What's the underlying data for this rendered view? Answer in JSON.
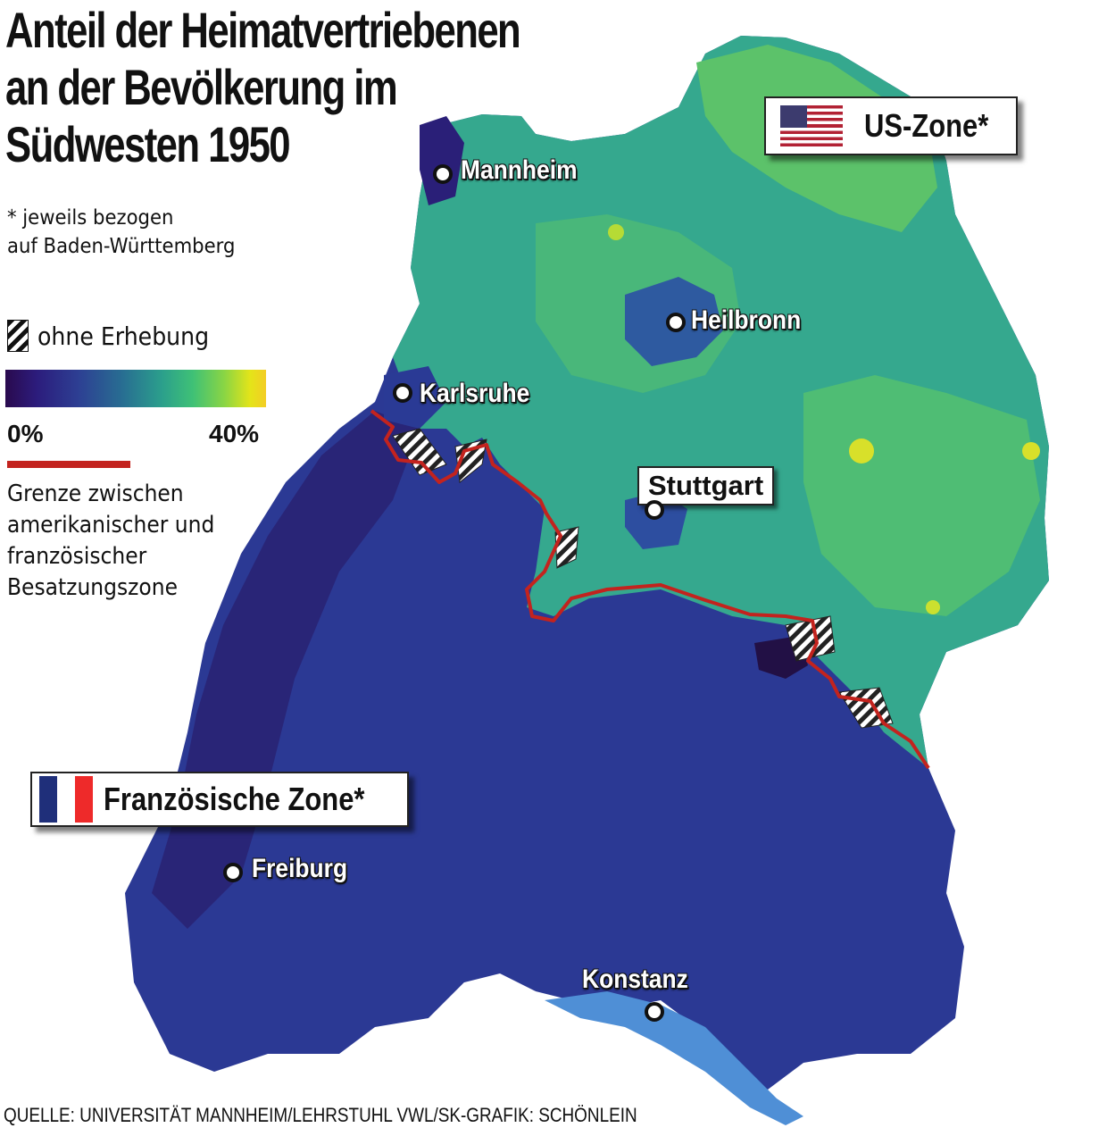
{
  "title": {
    "line1": "Anteil der Heimatvertriebenen",
    "line2": "an der Bevölkerung im",
    "line3": "Südwesten 1950"
  },
  "footnote": {
    "line1": "* jeweils bezogen",
    "line2": "auf Baden-Württemberg"
  },
  "legend": {
    "hatch_label": "ohne Erhebung",
    "scale_min": "0%",
    "scale_max": "40%",
    "border_line1": "Grenze zwischen",
    "border_line2": "amerikanischer und",
    "border_line3": "französischer",
    "border_line4": "Besatzungszone"
  },
  "zones": {
    "us": "US-Zone*",
    "fr": "Französische Zone*"
  },
  "cities": {
    "mannheim": "Mannheim",
    "heilbronn": "Heilbronn",
    "karlsruhe": "Karlsruhe",
    "stuttgart": "Stuttgart",
    "freiburg": "Freiburg",
    "konstanz": "Konstanz"
  },
  "source": "QUELLE: UNIVERSITÄT MANNHEIM/LEHRSTUHL VWL/SK-GRAFIK: SCHÖNLEIN",
  "colors": {
    "scale_low": "#2a0a4e",
    "scale_mid": "#2b9f8c",
    "scale_high": "#f3cd25",
    "border_line": "#c3231e",
    "lake": "#4f8fd6"
  },
  "icons": {
    "us_flag": "us-flag-icon",
    "fr_flag": "fr-flag-icon"
  }
}
